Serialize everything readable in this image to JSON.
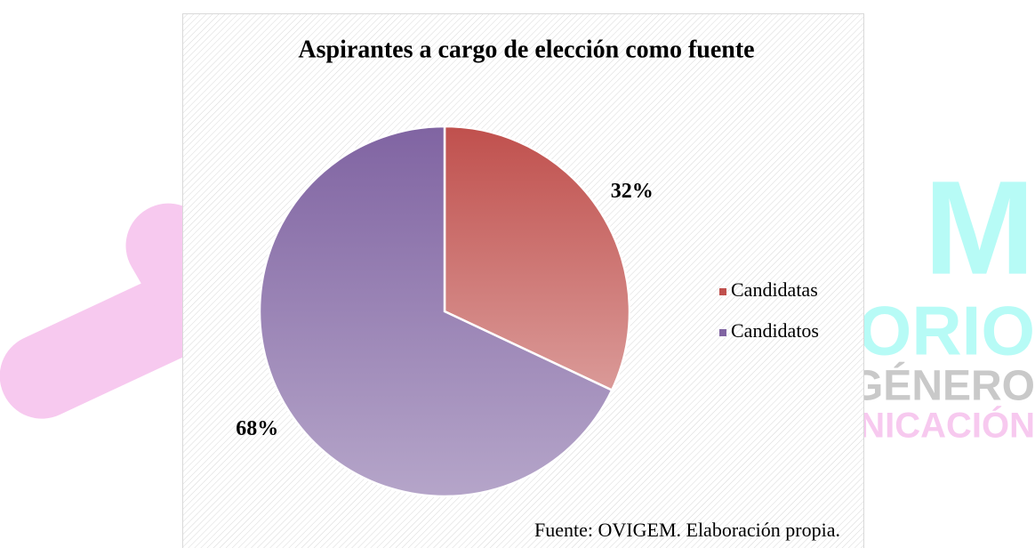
{
  "watermark": [
    "M",
    "ORIO",
    "GÉNERO",
    "NICACIÓN"
  ],
  "chart_data": {
    "type": "pie",
    "title": "Aspirantes a cargo de elección como fuente",
    "categories": [
      "Candidatas",
      "Candidatos"
    ],
    "values": [
      32,
      68
    ],
    "value_labels": [
      "32%",
      "68%"
    ],
    "colors": [
      "#c0504d",
      "#8064a2"
    ],
    "legend": "right",
    "source": "Fuente: OVIGEM. Elaboración propia."
  }
}
